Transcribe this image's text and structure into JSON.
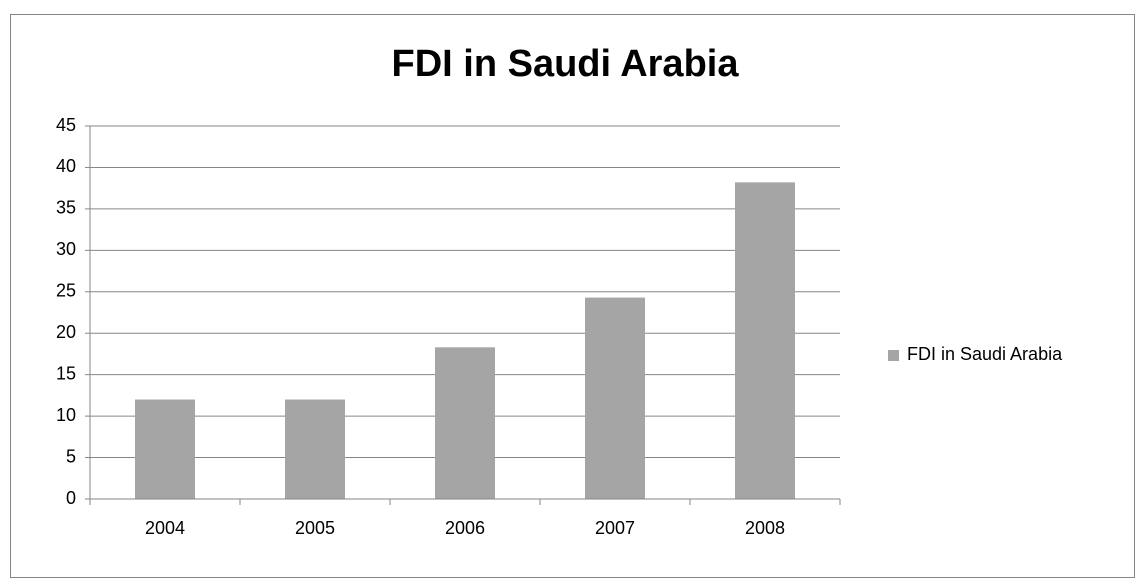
{
  "chart_data": {
    "type": "bar",
    "title": "FDI in Saudi Arabia",
    "categories": [
      "2004",
      "2005",
      "2006",
      "2007",
      "2008"
    ],
    "series": [
      {
        "name": "FDI in Saudi Arabia",
        "color": "#a5a5a5",
        "values": [
          12,
          12,
          18.3,
          24.3,
          38.2
        ]
      }
    ],
    "ylim": [
      0,
      45
    ],
    "yticks": [
      0,
      5,
      10,
      15,
      20,
      25,
      30,
      35,
      40,
      45
    ],
    "grid": true,
    "legend": "right"
  }
}
